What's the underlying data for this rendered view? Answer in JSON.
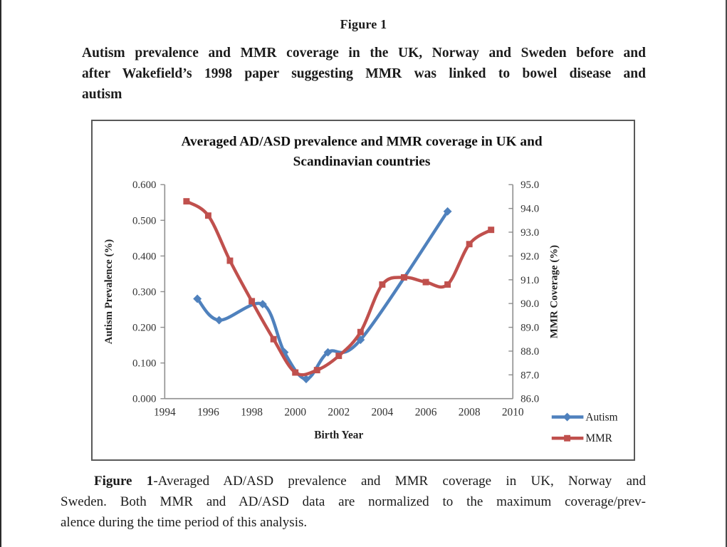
{
  "page": {
    "figure_label": "Figure 1",
    "heading_lines": [
      "Autism prevalence and MMR coverage in the UK, Norway and Sweden before and",
      "after Wakefield’s 1998 paper suggesting MMR was linked to bowel disease and",
      "autism"
    ],
    "caption": {
      "bold_prefix": "Figure 1",
      "line1_rest": "-Averaged AD/ASD prevalence and MMR coverage in UK, Norway and",
      "line2": "Sweden. Both MMR and AD/ASD data are normalized to the maximum coverage/prev-",
      "line3": "alence during the time period of this analysis."
    }
  },
  "colors": {
    "autism_blue": "#4F81BD",
    "mmr_red": "#C0504D",
    "axis_gray": "#8e8e8e",
    "tick_text": "#333333",
    "chart_border": "#595959"
  },
  "chart_data": {
    "type": "line",
    "title_lines": [
      "Averaged AD/ASD prevalence and MMR coverage in UK and",
      "Scandinavian countries"
    ],
    "xlabel": "Birth Year",
    "x_tick_labels": [
      "1994",
      "1996",
      "1998",
      "2000",
      "2002",
      "2004",
      "2006",
      "2008",
      "2010"
    ],
    "xlim": [
      1994,
      2010
    ],
    "left_axis": {
      "label": "Autism Prevalence (%)",
      "tick_labels": [
        "0.000",
        "0.100",
        "0.200",
        "0.300",
        "0.400",
        "0.500",
        "0.600"
      ],
      "lim": [
        0,
        0.6
      ]
    },
    "right_axis": {
      "label": "MMR Coverage (%)",
      "tick_labels": [
        "86.0",
        "87.0",
        "88.0",
        "89.0",
        "90.0",
        "91.0",
        "92.0",
        "93.0",
        "94.0",
        "95.0"
      ],
      "lim": [
        86,
        95
      ]
    },
    "grid": false,
    "legend_position": "bottom-right-outside",
    "series": [
      {
        "name": "Autism",
        "axis": "left",
        "color": "#4F81BD",
        "marker": "diamond",
        "x": [
          1995.5,
          1996.5,
          1998.5,
          1999.5,
          2000.5,
          2001.5,
          2003,
          2007
        ],
        "y": [
          0.28,
          0.22,
          0.265,
          0.13,
          0.055,
          0.13,
          0.165,
          0.525
        ]
      },
      {
        "name": "MMR",
        "axis": "right",
        "color": "#C0504D",
        "marker": "square",
        "x": [
          1995,
          1996,
          1997,
          1998,
          1999,
          2000,
          2001,
          2002,
          2003,
          2004,
          2005,
          2006,
          2007,
          2008,
          2009
        ],
        "y": [
          94.3,
          93.7,
          91.8,
          90.1,
          88.5,
          87.1,
          87.2,
          87.8,
          88.8,
          90.8,
          91.1,
          90.9,
          90.8,
          92.5,
          93.1
        ]
      }
    ]
  }
}
